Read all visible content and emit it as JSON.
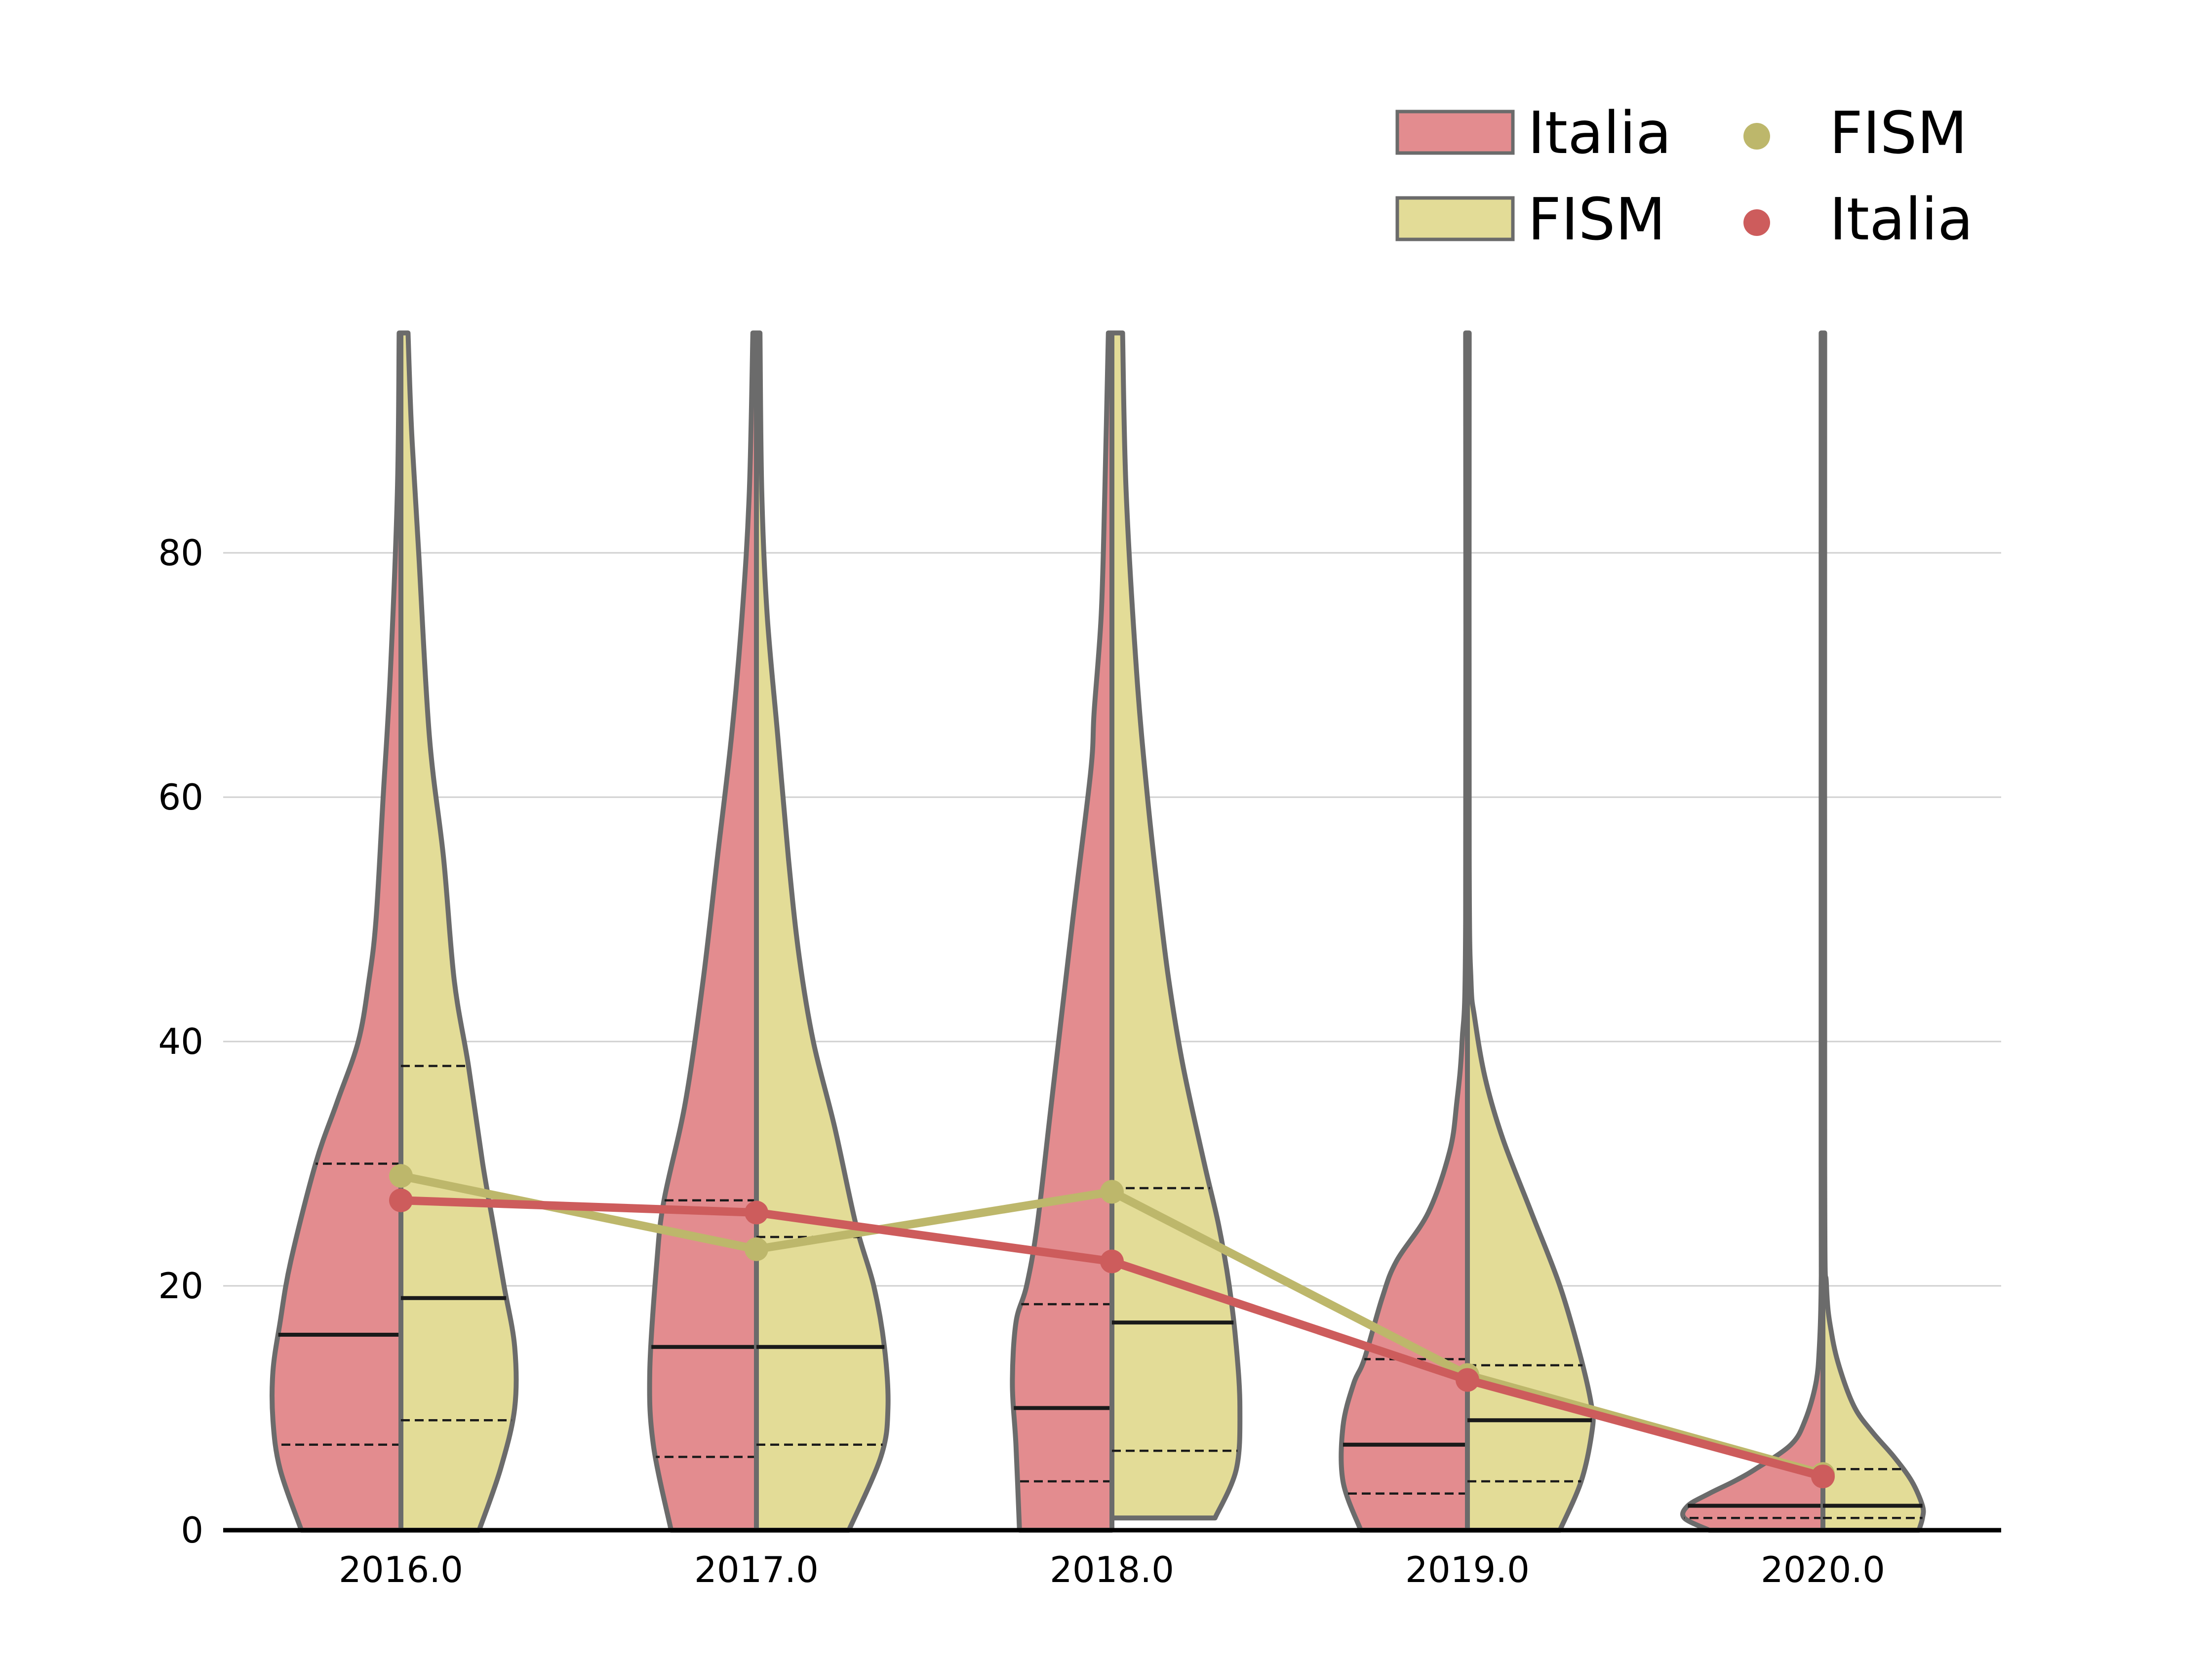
{
  "chart_data": {
    "type": "violin",
    "title": "",
    "xlabel": "",
    "ylabel": "",
    "ylim": [
      0,
      98
    ],
    "yticks": [
      "0",
      "20",
      "40",
      "60",
      "80"
    ],
    "ytick_values": [
      0,
      20,
      40,
      60,
      80
    ],
    "grid": "horizontal",
    "categories": [
      "2016.0",
      "2017.0",
      "2018.0",
      "2019.0",
      "2020.0"
    ],
    "legend": {
      "placement": "top-right",
      "patches": [
        {
          "label": "Italia",
          "color": "#e38c8f"
        },
        {
          "label": "FISM",
          "color": "#e3dc97"
        }
      ],
      "markers": [
        {
          "label": "FISM",
          "color": "#bdb76b"
        },
        {
          "label": "Italia",
          "color": "#cd5c5c"
        }
      ]
    },
    "colors": {
      "italia_fill": "#e38c8f",
      "fism_fill": "#e3dc97",
      "italia_line": "#cd5c5c",
      "fism_line": "#bdb76b",
      "outline": "#6b6b6b",
      "grid": "#d0d0d0"
    },
    "violins": [
      {
        "category": "2016.0",
        "italia": {
          "q1": 7,
          "median": 16,
          "q3": 30,
          "profile": [
            [
              0,
              0.28
            ],
            [
              5,
              0.34
            ],
            [
              9,
              0.36
            ],
            [
              13,
              0.36
            ],
            [
              17,
              0.34
            ],
            [
              22,
              0.31
            ],
            [
              30,
              0.24
            ],
            [
              35,
              0.18
            ],
            [
              40,
              0.12
            ],
            [
              45,
              0.09
            ],
            [
              50,
              0.07
            ],
            [
              60,
              0.05
            ],
            [
              70,
              0.03
            ],
            [
              85,
              0.01
            ],
            [
              98,
              0.005
            ]
          ]
        },
        "fism": {
          "q1": 9,
          "median": 19,
          "q3": 38,
          "profile": [
            [
              0,
              0.22
            ],
            [
              5,
              0.28
            ],
            [
              10,
              0.32
            ],
            [
              15,
              0.32
            ],
            [
              20,
              0.29
            ],
            [
              25,
              0.26
            ],
            [
              30,
              0.23
            ],
            [
              38,
              0.19
            ],
            [
              45,
              0.15
            ],
            [
              55,
              0.12
            ],
            [
              65,
              0.08
            ],
            [
              80,
              0.05
            ],
            [
              90,
              0.03
            ],
            [
              98,
              0.02
            ]
          ]
        }
      },
      {
        "category": "2017.0",
        "italia": {
          "q1": 6,
          "median": 15,
          "q3": 27,
          "profile": [
            [
              0,
              0.24
            ],
            [
              7,
              0.29
            ],
            [
              13,
              0.3
            ],
            [
              22,
              0.28
            ],
            [
              27,
              0.26
            ],
            [
              35,
              0.2
            ],
            [
              45,
              0.15
            ],
            [
              55,
              0.11
            ],
            [
              65,
              0.07
            ],
            [
              75,
              0.04
            ],
            [
              85,
              0.02
            ],
            [
              98,
              0.01
            ]
          ]
        },
        "fism": {
          "q1": 7,
          "median": 15,
          "q3": 24,
          "profile": [
            [
              0,
              0.26
            ],
            [
              6,
              0.35
            ],
            [
              10,
              0.37
            ],
            [
              15,
              0.36
            ],
            [
              20,
              0.33
            ],
            [
              25,
              0.28
            ],
            [
              33,
              0.22
            ],
            [
              40,
              0.16
            ],
            [
              47,
              0.12
            ],
            [
              55,
              0.09
            ],
            [
              65,
              0.06
            ],
            [
              75,
              0.03
            ],
            [
              85,
              0.015
            ],
            [
              98,
              0.01
            ]
          ]
        }
      },
      {
        "category": "2018.0",
        "italia": {
          "q1": 4,
          "median": 10,
          "q3": 18.5,
          "profile": [
            [
              0,
              0.26
            ],
            [
              7,
              0.27
            ],
            [
              12,
              0.28
            ],
            [
              17,
              0.27
            ],
            [
              20,
              0.24
            ],
            [
              25,
              0.21
            ],
            [
              35,
              0.17
            ],
            [
              50,
              0.11
            ],
            [
              62,
              0.06
            ],
            [
              67,
              0.05
            ],
            [
              75,
              0.03
            ],
            [
              85,
              0.02
            ],
            [
              98,
              0.01
            ]
          ]
        },
        "fism": {
          "q1": 6.5,
          "median": 17,
          "q3": 28,
          "floor": 1,
          "profile": [
            [
              1,
              0.29
            ],
            [
              5,
              0.35
            ],
            [
              10,
              0.36
            ],
            [
              15,
              0.35
            ],
            [
              20,
              0.33
            ],
            [
              25,
              0.3
            ],
            [
              30,
              0.26
            ],
            [
              38,
              0.2
            ],
            [
              45,
              0.16
            ],
            [
              52,
              0.13
            ],
            [
              60,
              0.1
            ],
            [
              70,
              0.07
            ],
            [
              85,
              0.04
            ],
            [
              98,
              0.03
            ]
          ]
        }
      },
      {
        "category": "2019.0",
        "italia": {
          "q1": 3,
          "median": 7,
          "q3": 14,
          "profile": [
            [
              0,
              0.3
            ],
            [
              4,
              0.35
            ],
            [
              8.5,
              0.35
            ],
            [
              12,
              0.32
            ],
            [
              14,
              0.29
            ],
            [
              19,
              0.24
            ],
            [
              22,
              0.2
            ],
            [
              26,
              0.11
            ],
            [
              31,
              0.05
            ],
            [
              35,
              0.03
            ],
            [
              40,
              0.015
            ],
            [
              50,
              0.005
            ],
            [
              98,
              0.005
            ]
          ]
        },
        "fism": {
          "q1": 4,
          "median": 9,
          "q3": 13.5,
          "profile": [
            [
              0,
              0.26
            ],
            [
              4,
              0.32
            ],
            [
              8,
              0.35
            ],
            [
              10,
              0.35
            ],
            [
              14,
              0.32
            ],
            [
              20,
              0.26
            ],
            [
              26,
              0.18
            ],
            [
              32,
              0.1
            ],
            [
              37,
              0.05
            ],
            [
              42,
              0.02
            ],
            [
              45,
              0.01
            ],
            [
              55,
              0.005
            ],
            [
              98,
              0.005
            ]
          ]
        }
      },
      {
        "category": "2020.0",
        "italia": {
          "q1": 1,
          "median": 2,
          "q3": null,
          "profile": [
            [
              0,
              0.32
            ],
            [
              1,
              0.39
            ],
            [
              2,
              0.38
            ],
            [
              3,
              0.32
            ],
            [
              4,
              0.25
            ],
            [
              5,
              0.19
            ],
            [
              7,
              0.09
            ],
            [
              9,
              0.05
            ],
            [
              12,
              0.02
            ],
            [
              15,
              0.01
            ],
            [
              20,
              0.005
            ],
            [
              30,
              0.005
            ],
            [
              98,
              0.005
            ]
          ]
        },
        "fism": {
          "q1": 1,
          "median": 2,
          "q3": 5,
          "profile": [
            [
              0,
              0.27
            ],
            [
              1,
              0.28
            ],
            [
              2,
              0.28
            ],
            [
              4,
              0.25
            ],
            [
              6,
              0.2
            ],
            [
              8,
              0.14
            ],
            [
              10,
              0.09
            ],
            [
              13,
              0.05
            ],
            [
              16,
              0.025
            ],
            [
              20,
              0.01
            ],
            [
              30,
              0.005
            ],
            [
              98,
              0.005
            ]
          ]
        }
      }
    ],
    "series": [
      {
        "name": "Italia",
        "color": "#cd5c5c",
        "values": [
          27,
          26,
          22,
          12.3,
          4.4
        ]
      },
      {
        "name": "FISM",
        "color": "#bdb76b",
        "values": [
          29,
          23,
          27.7,
          12.7,
          4.6
        ]
      }
    ]
  }
}
